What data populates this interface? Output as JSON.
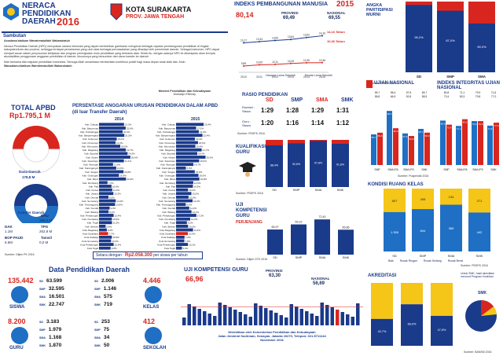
{
  "header": {
    "title1": "NERACA",
    "title2": "PENDIDIKAN",
    "title3": "DAERAH",
    "year": "2016",
    "city": "KOTA SURAKARTA",
    "prov": "PROV. JAWA TENGAH"
  },
  "sambutan": {
    "title": "Sambutan",
    "greet": "Assalamu'alaikum Warrahmatullahi Wabarokatuh",
    "p1": "Neraca Pendidikan Daerah (NPD) merupakan sarana informasi yang dapat memberikan gambaran mengenai berbagai capaian pembangunan pendidikan di tingkat kabupaten/kota dan provinsi, sehingga terdapat pemahaman yang utuh atas berbagai permasalahan yang dihadapi oleh pemerintah daerah. Sebagai instrumen, NPD dapat menjadi acuan dalam penyusunan kebijakan dan program peningkatan mutu pendidikan yang berbasis data. Selain itu, dengan adanya NPD ini diharapkan akan tercipta akuntabilitas penggunaan anggaran pendidikan di daerah, khususnya yang bersumber dari dana transfer ke daerah.",
    "p2": "Mari bersama kita majukan pendidikan Indonesia. Semoga Allah senantiasa memberikan kontribusi positif bagi masa depan anak didik kita. Amin.",
    "close": "Wassalamu'alaikum Warrahmatullahi Wabarokatuh",
    "sign1": "Menteri Pendidikan dan Kebudayaan",
    "sign2": "Muhadjir Effendy"
  },
  "apbd": {
    "title": "TOTAL APBD",
    "value": "Rp1.795,1 M",
    "dana_label": "Dana Daerah",
    "dana_val": "178,8 M",
    "transfer_label": "Transfer Daerah",
    "dau_l": "DAU",
    "dau_v": "296,2 M",
    "dak_l": "DAK",
    "dak_v": "1.1M",
    "tpg_l": "TPG",
    "tpg_v": "262,9 M",
    "bop_l": "BOP PAUD",
    "bop_v": "6.6M",
    "tamsil_l": "Tamsil",
    "tamsil_v": "0,0 M",
    "src": "Sumber: Ditjen PK 2016"
  },
  "persen": {
    "title": "PERSENTASE ANGGARAN URUSAN PENDIDIKAN DALAM APBD",
    "sub": "(di luar Transfer Daerah)",
    "y1": "2014",
    "y2": "2015",
    "setara": "Setara dengan :",
    "setara_val": "Rp2.058.300",
    "setara_tail": "per siswa per tahun"
  },
  "ipm": {
    "title": "INDEKS PEMBANGUNAN MANUSIA",
    "year": "2015",
    "val": "80,14",
    "prov_l": "PROVINSI",
    "prov_v": "69,49",
    "nas_l": "NASIONAL",
    "nas_v": "69,55",
    "r1": "14,16 Tahun",
    "r2": "10,36 Tahun",
    "leg1": "Harapan Lama Sekolah",
    "leg2": "Rerata Lama Sekolah"
  },
  "partisipasi": {
    "title": "ANGKA PARTISIPASI MURNI",
    "src": "Sumber: PDSPK 2016"
  },
  "rasio": {
    "title": "RASIO PENDIDIKAN",
    "r1": "Rombel : Siswa",
    "r2": "Guru : Siswa",
    "cols": [
      "SD",
      "SMP",
      "SMA",
      "SMK"
    ],
    "a": [
      "1:29",
      "1:28",
      "1:29",
      "1:31"
    ],
    "b": [
      "1:20",
      "1:16",
      "1:14",
      "1:12"
    ],
    "src": "Sumber: PDSPK 2016"
  },
  "un": {
    "title": "UJIAN NASIONAL",
    "leg1": "2015",
    "leg2": "2016",
    "src": "Sumber: Puspendik 2016"
  },
  "iiun": {
    "title": "INDEKS INTEGRITAS UJIAN NASIONAL"
  },
  "kualifikasi": {
    "title": "KUALIFIKASI",
    "t2": "GURU",
    "src": "Sumber: PDSPK 2016"
  },
  "ukg": {
    "title": "UJI",
    "t2": "KOMPETENSI",
    "t3": "GURU",
    "t4": "PERJENJANG",
    "src": "Sumber: Ditjen GTK 2015"
  },
  "kondisi": {
    "title": "KONDISI RUANG KELAS",
    "leg": [
      "Baik",
      "Rusak Ringan",
      "Rusak Sedang",
      "Rusak Berat"
    ],
    "src": "Sumber: PDSPK 2016"
  },
  "ukgd": {
    "title": "UJI KOMPETENSI GURU",
    "val": "66,96",
    "prov_l": "PROVINSI",
    "prov_v": "63,30",
    "nas_l": "NASIONAL",
    "nas_v": "56,69"
  },
  "akred": {
    "title": "AKREDITASI",
    "note": "Untuk SMK, hasil akreditasi menurut Program Keahlian",
    "smk": "SMK",
    "src": "Sumber: BANSM 2016"
  },
  "data": {
    "title": "Data Pendidikan Daerah",
    "siswa_total": "135.442",
    "siswa_l": "SISWA",
    "guru_total": "8.200",
    "guru_l": "GURU",
    "kelas_total": "4.446",
    "kelas_l": "KELAS",
    "sek_total": "412",
    "sek_l": "SEKOLAH",
    "siswa": [
      {
        "k": "SD",
        "v": "63.599"
      },
      {
        "k": "SMP",
        "v": "32.595"
      },
      {
        "k": "SMA",
        "v": "16.501"
      },
      {
        "k": "SMK",
        "v": "22.747"
      }
    ],
    "guru": [
      {
        "k": "SD",
        "v": "3.183"
      },
      {
        "k": "SMP",
        "v": "1.979"
      },
      {
        "k": "SMA",
        "v": "1.168"
      },
      {
        "k": "SMK",
        "v": "1.870"
      }
    ],
    "kelas": [
      {
        "k": "SD",
        "v": "2.006"
      },
      {
        "k": "SMP",
        "v": "1.146"
      },
      {
        "k": "SMA",
        "v": "575"
      },
      {
        "k": "SMK",
        "v": "719"
      }
    ],
    "sekolah": [
      {
        "k": "SD",
        "v": "253"
      },
      {
        "k": "SMP",
        "v": "75"
      },
      {
        "k": "SMA",
        "v": "34"
      },
      {
        "k": "SMK",
        "v": "50"
      }
    ]
  },
  "footer": {
    "l1": "Diterbitkan oleh Kementerian Pendidikan dan Kebudayaan",
    "l2": "Jalan Jenderal Sudirman, Senayan, Jakarta 10270, Telepon: 021-5711144",
    "l3": "November 2016"
  },
  "chart_data": [
    {
      "type": "bar",
      "title": "PERSENTASE ANGGARAN URUSAN PENDIDIKAN DALAM APBD",
      "labels": [
        "Kab. Cilacap",
        "Kab. Banyumas",
        "Kab. Purbalingga",
        "Kab. Banjarnegara",
        "Kab. Kebumen",
        "Kab. Purworejo",
        "Kab. Wonosobo",
        "Kab. Magelang",
        "Kab. Boyolali",
        "Kab. Klaten",
        "Kab. Sukoharjo",
        "Kab. Wonogiri",
        "Kab. Karanganyar",
        "Kab. Sragen",
        "Kab. Grobogan",
        "Kab. Blora",
        "Kab. Rembang",
        "Kab. Pati",
        "Kab. Kudus",
        "Kab. Jepara",
        "Kab. Demak",
        "Kab. Semarang",
        "Kab. Temanggung",
        "Kab. Kendal",
        "Kab. Batang",
        "Kab. Pekalongan",
        "Kab. Pemalang",
        "Kab. Tegal",
        "Kab. Brebes",
        "Kota Magelang",
        "Kota Surakarta",
        "Kota Salatiga",
        "Kota Semarang",
        "Kota Pekalongan",
        "Kota Tegal"
      ],
      "series": [
        {
          "name": "2014",
          "values": [
            21.2,
            22.6,
            20.0,
            21.5,
            15.0,
            14.0,
            18.0,
            22.7,
            24.2,
            26.6,
            21.1,
            11.9,
            14.6,
            20.8,
            16.9,
            22.9,
            7.2,
            10.6,
            11.2,
            12.2,
            8.0,
            14.2,
            13.6,
            9.0,
            8.1,
            12.4,
            10.9,
            11.0,
            5.6,
            6.6,
            7.7,
            10.9,
            10.2,
            12.4,
            9.8
          ]
        },
        {
          "name": "2015",
          "values": [
            23.4,
            17.0,
            19.3,
            22.4,
            16.0,
            18.6,
            16.4,
            21.7,
            18.0,
            25.0,
            19.6,
            14.7,
            8.3,
            15.9,
            19.0,
            19.8,
            14.6,
            14.3,
            10.2,
            13.0,
            10.6,
            14.0,
            8.2,
            11.2,
            13.1,
            17.2,
            12.0,
            9.2,
            10.2,
            14.4,
            10.0,
            7.2,
            7.0,
            10.1,
            5.0
          ]
        }
      ]
    },
    {
      "type": "line",
      "title": "INDEKS PEMBANGUNAN MANUSIA",
      "x": [
        "2010",
        "2011",
        "2012",
        "2013",
        "2014",
        "2015"
      ],
      "series": [
        {
          "name": "Harapan Lama Sekolah",
          "values": [
            13.17,
            13.34,
            13.5,
            13.64,
            13.92,
            14.16
          ]
        },
        {
          "name": "Rerata Lama Sekolah",
          "values": [
            9.89,
            10.05,
            10.11,
            10.25,
            10.35,
            10.36
          ]
        }
      ]
    },
    {
      "type": "bar",
      "title": "ANGKA PARTISIPASI MURNI",
      "categories": [
        "SD",
        "SMP",
        "SMA"
      ],
      "values": [
        95.2,
        87.0,
        69.0
      ]
    },
    {
      "type": "bar",
      "title": "UJIAN NASIONAL",
      "categories": [
        "SMP",
        "SMA IPA",
        "SMA IPS",
        "SMK"
      ],
      "series": [
        {
          "name": "2015",
          "values": [
            55.7,
            98.4,
            57.5,
            65.7
          ]
        },
        {
          "name": "2016",
          "values": [
            58.8,
            66.9,
            52.8,
            58.9
          ]
        }
      ]
    },
    {
      "type": "bar",
      "title": "INDEKS INTEGRITAS UJIAN NASIONAL",
      "categories": [
        "SMP",
        "SMA IPA",
        "SMA IPS",
        "SMK"
      ],
      "series": [
        {
          "name": "2015",
          "values": [
            80.8,
            71.1,
            79.9,
            71.6
          ]
        },
        {
          "name": "2016",
          "values": [
            73.4,
            83.3,
            79.8,
            77.0
          ]
        }
      ]
    },
    {
      "type": "bar",
      "title": "KUALIFIKASI GURU",
      "categories": [
        "SD",
        "SMP",
        "SMA",
        "SMK"
      ],
      "values": [
        88.4,
        92.6,
        97.8,
        91.6
      ]
    },
    {
      "type": "bar",
      "title": "UJI KOMPETENSI GURU PERJENJANG",
      "categories": [
        "SD",
        "SMP",
        "SMA",
        "SMK"
      ],
      "series": [
        {
          "name": "Kota",
          "values": [
            65.97,
            69.22,
            72.4,
            65.86
          ]
        }
      ]
    },
    {
      "type": "bar",
      "title": "KONDISI RUANG KELAS",
      "categories": [
        "SD",
        "SMP",
        "SMA",
        "SMK"
      ],
      "values_baik": [
        1355,
        844,
        389,
        442
      ],
      "values_rusak_ringan": [
        807,
        408,
        134,
        271
      ]
    },
    {
      "type": "bar",
      "title": "UJI KOMPETENSI GURU",
      "values": [
        66.96,
        63.3,
        56.69
      ]
    },
    {
      "type": "bar",
      "title": "AKREDITASI",
      "categories": [
        "SD",
        "SMP",
        "SMA"
      ],
      "values_a": [
        42.7,
        66.0,
        47.6
      ]
    }
  ]
}
